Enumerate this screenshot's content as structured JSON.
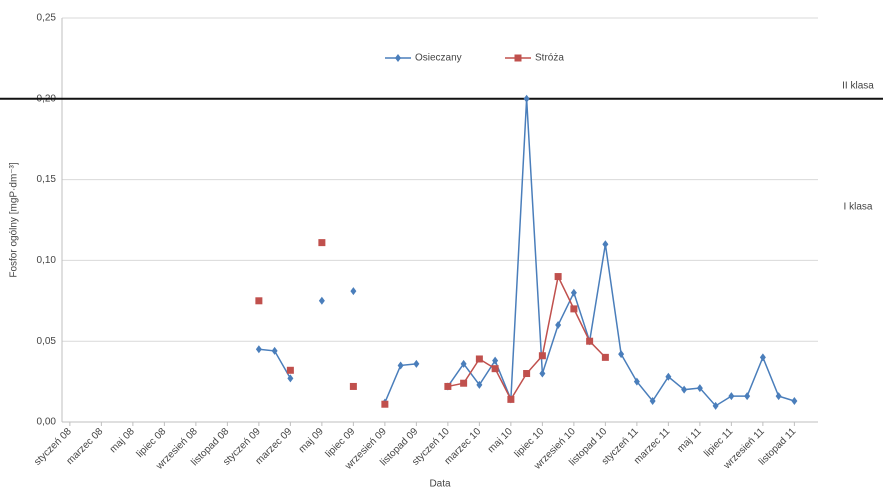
{
  "chart_data": {
    "type": "line",
    "x_label": "Data",
    "y_label": "Fosfor ogólny [mgP·dm⁻³]",
    "categories": [
      "styczeń 08",
      null,
      "marzec 08",
      null,
      "maj 08",
      null,
      "lipiec 08",
      null,
      "wrzesień 08",
      null,
      "listopad 08",
      null,
      "styczeń 09",
      null,
      "marzec 09",
      null,
      "maj 09",
      null,
      "lipiec 09",
      null,
      "wrzesień 09",
      null,
      "listopad 09",
      null,
      "styczeń 10",
      null,
      "marzec 10",
      null,
      "maj 10",
      null,
      "lipiec 10",
      null,
      "wrzesień 10",
      null,
      "listopad 10",
      null,
      "styczeń 11",
      null,
      "marzec 11",
      null,
      "maj 11",
      null,
      "lipiec 11",
      null,
      "wrzesień 11",
      null,
      "listopad 11",
      null
    ],
    "series": [
      {
        "name": "Osieczany",
        "color": "#4a7ebb",
        "marker": "diamond",
        "values": [
          null,
          null,
          null,
          null,
          null,
          null,
          null,
          null,
          null,
          null,
          null,
          null,
          0.045,
          0.044,
          0.027,
          null,
          0.075,
          null,
          0.081,
          null,
          0.012,
          0.035,
          0.036,
          null,
          0.022,
          0.036,
          0.023,
          0.038,
          0.014,
          0.2,
          0.03,
          0.06,
          0.08,
          0.05,
          0.11,
          0.042,
          0.025,
          0.013,
          0.028,
          0.02,
          0.021,
          0.01,
          0.016,
          0.016,
          0.04,
          0.016,
          0.013,
          null
        ]
      },
      {
        "name": "Stróża",
        "color": "#c0504d",
        "marker": "square",
        "values": [
          null,
          null,
          null,
          null,
          null,
          null,
          null,
          null,
          null,
          null,
          null,
          null,
          0.075,
          null,
          0.032,
          null,
          0.111,
          null,
          0.022,
          null,
          0.011,
          null,
          null,
          null,
          0.022,
          0.024,
          0.039,
          0.033,
          0.014,
          0.03,
          0.041,
          0.09,
          0.07,
          0.05,
          0.04,
          null,
          null,
          null,
          null,
          null,
          null,
          null,
          null,
          null,
          null,
          null,
          null,
          null
        ]
      }
    ],
    "ylim": [
      0,
      0.25
    ],
    "yticks": [
      {
        "value": 0,
        "label": "0,00"
      },
      {
        "value": 0.05,
        "label": "0,05"
      },
      {
        "value": 0.1,
        "label": "0,10"
      },
      {
        "value": 0.15,
        "label": "0,15"
      },
      {
        "value": 0.2,
        "label": "0,20"
      },
      {
        "value": 0.25,
        "label": "0,25"
      }
    ],
    "grid": true,
    "legend": "top",
    "threshold": {
      "value": 0.2,
      "label": "II klasa"
    },
    "region_label": "I klasa"
  }
}
